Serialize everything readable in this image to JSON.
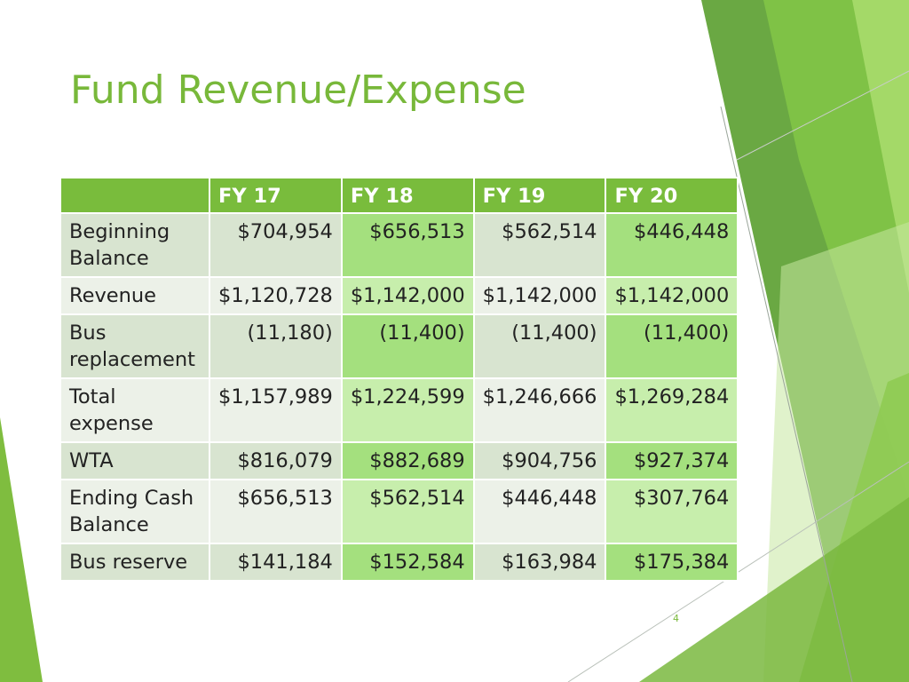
{
  "slide": {
    "title": "Fund Revenue/Expense",
    "page_number": "4"
  },
  "colors": {
    "accent": "#78b83a",
    "header_bg": "#79bc3c",
    "row_light_odd": "#d8e4d0",
    "row_light_even": "#ecf1e8",
    "row_green_odd": "#a4e07e",
    "row_green_even": "#c7eeac"
  },
  "table": {
    "headers": [
      "",
      "FY 17",
      "FY 18",
      "FY 19",
      "FY 20"
    ],
    "rows": [
      {
        "label": "Beginning Balance",
        "values": [
          "$704,954",
          "$656,513",
          "$562,514",
          "$446,448"
        ]
      },
      {
        "label": "Revenue",
        "values": [
          "$1,120,728",
          "$1,142,000",
          "$1,142,000",
          "$1,142,000"
        ]
      },
      {
        "label": "Bus replacement",
        "values": [
          "(11,180)",
          "(11,400)",
          "(11,400)",
          "(11,400)"
        ]
      },
      {
        "label": "Total expense",
        "values": [
          "$1,157,989",
          "$1,224,599",
          "$1,246,666",
          "$1,269,284"
        ]
      },
      {
        "label": "WTA",
        "values": [
          "$816,079",
          "$882,689",
          "$904,756",
          "$927,374"
        ]
      },
      {
        "label": "Ending Cash Balance",
        "values": [
          "$656,513",
          "$562,514",
          "$446,448",
          "$307,764"
        ]
      },
      {
        "label": "Bus reserve",
        "values": [
          "$141,184",
          "$152,584",
          "$163,984",
          "$175,384"
        ]
      }
    ]
  }
}
